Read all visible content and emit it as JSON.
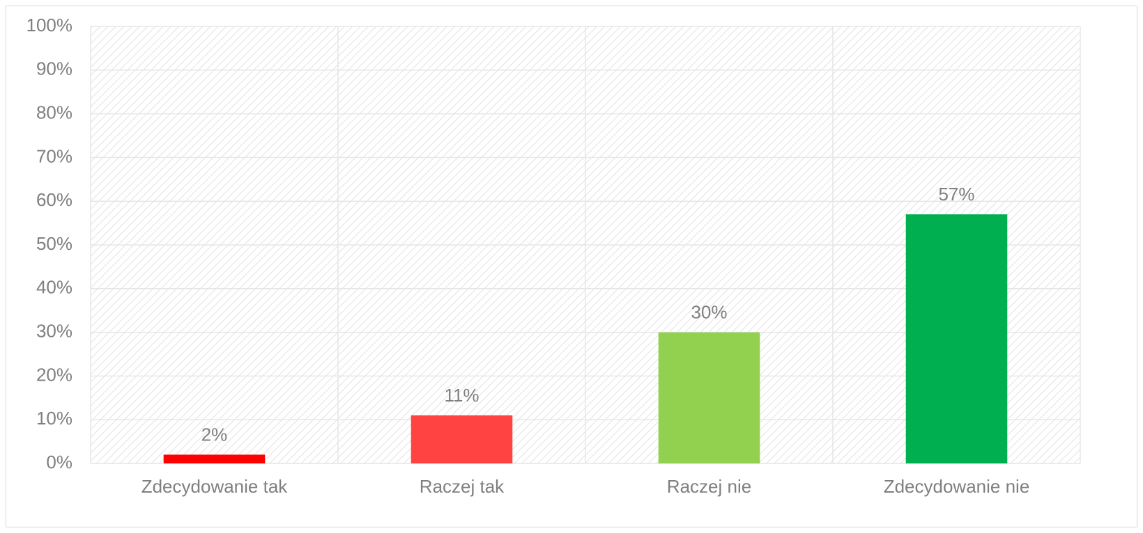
{
  "chart_data": {
    "type": "bar",
    "categories": [
      "Zdecydowanie tak",
      "Raczej tak",
      "Raczej nie",
      "Zdecydowanie nie"
    ],
    "values": [
      2,
      11,
      30,
      57
    ],
    "value_labels": [
      "2%",
      "11%",
      "30%",
      "57%"
    ],
    "colors": [
      "#ff0000",
      "#ff4343",
      "#92d050",
      "#00b050"
    ],
    "ylim": [
      0,
      100
    ],
    "yticks": [
      {
        "value": 0,
        "label": "0%"
      },
      {
        "value": 10,
        "label": "10%"
      },
      {
        "value": 20,
        "label": "20%"
      },
      {
        "value": 30,
        "label": "30%"
      },
      {
        "value": 40,
        "label": "40%"
      },
      {
        "value": 50,
        "label": "50%"
      },
      {
        "value": 60,
        "label": "60%"
      },
      {
        "value": 70,
        "label": "70%"
      },
      {
        "value": 80,
        "label": "80%"
      },
      {
        "value": 90,
        "label": "90%"
      },
      {
        "value": 100,
        "label": "100%"
      }
    ],
    "grid": true
  }
}
